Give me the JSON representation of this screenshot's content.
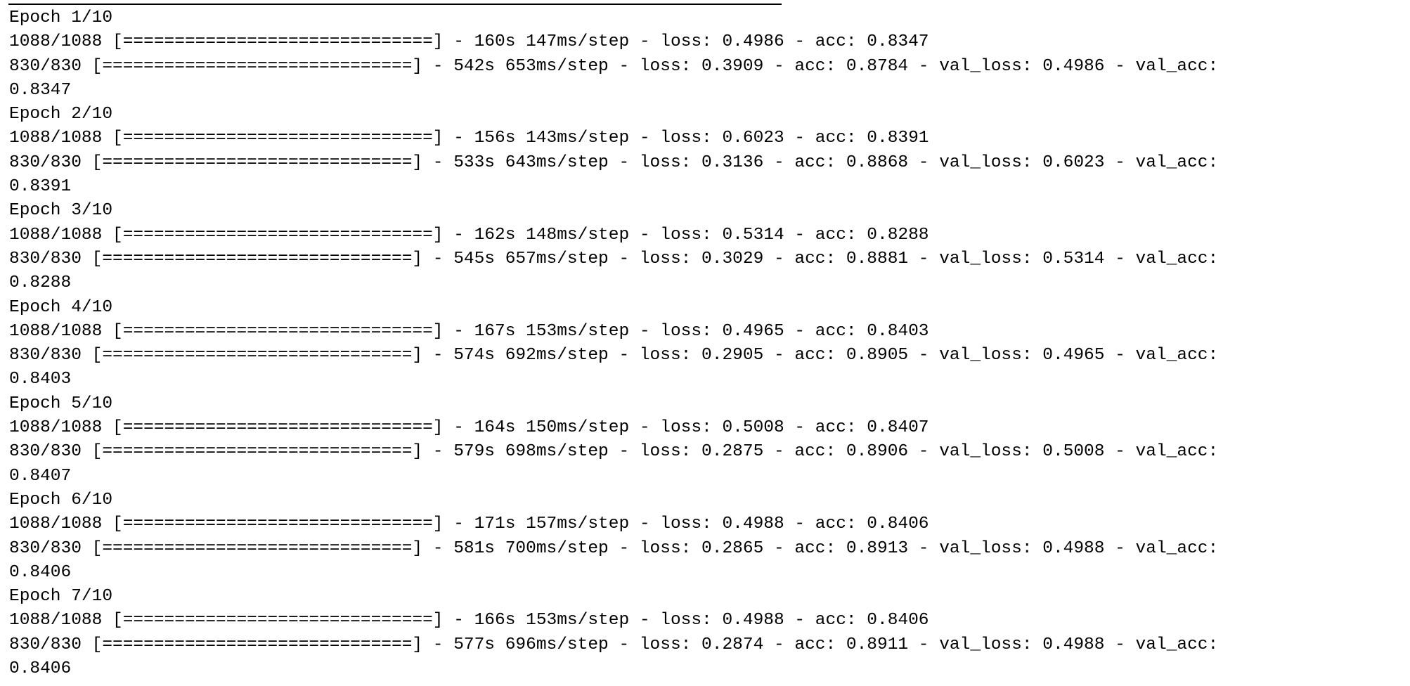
{
  "console": {
    "lines": [
      "Epoch 1/10",
      "1088/1088 [==============================] - 160s 147ms/step - loss: 0.4986 - acc: 0.8347",
      "830/830 [==============================] - 542s 653ms/step - loss: 0.3909 - acc: 0.8784 - val_loss: 0.4986 - val_acc:",
      "0.8347",
      "Epoch 2/10",
      "1088/1088 [==============================] - 156s 143ms/step - loss: 0.6023 - acc: 0.8391",
      "830/830 [==============================] - 533s 643ms/step - loss: 0.3136 - acc: 0.8868 - val_loss: 0.6023 - val_acc:",
      "0.8391",
      "Epoch 3/10",
      "1088/1088 [==============================] - 162s 148ms/step - loss: 0.5314 - acc: 0.8288",
      "830/830 [==============================] - 545s 657ms/step - loss: 0.3029 - acc: 0.8881 - val_loss: 0.5314 - val_acc:",
      "0.8288",
      "Epoch 4/10",
      "1088/1088 [==============================] - 167s 153ms/step - loss: 0.4965 - acc: 0.8403",
      "830/830 [==============================] - 574s 692ms/step - loss: 0.2905 - acc: 0.8905 - val_loss: 0.4965 - val_acc:",
      "0.8403",
      "Epoch 5/10",
      "1088/1088 [==============================] - 164s 150ms/step - loss: 0.5008 - acc: 0.8407",
      "830/830 [==============================] - 579s 698ms/step - loss: 0.2875 - acc: 0.8906 - val_loss: 0.5008 - val_acc:",
      "0.8407",
      "Epoch 6/10",
      "1088/1088 [==============================] - 171s 157ms/step - loss: 0.4988 - acc: 0.8406",
      "830/830 [==============================] - 581s 700ms/step - loss: 0.2865 - acc: 0.8913 - val_loss: 0.4988 - val_acc:",
      "0.8406",
      "Epoch 7/10",
      "1088/1088 [==============================] - 166s 153ms/step - loss: 0.4988 - acc: 0.8406",
      "830/830 [==============================] - 577s 696ms/step - loss: 0.2874 - acc: 0.8911 - val_loss: 0.4988 - val_acc:",
      "0.8406"
    ]
  }
}
